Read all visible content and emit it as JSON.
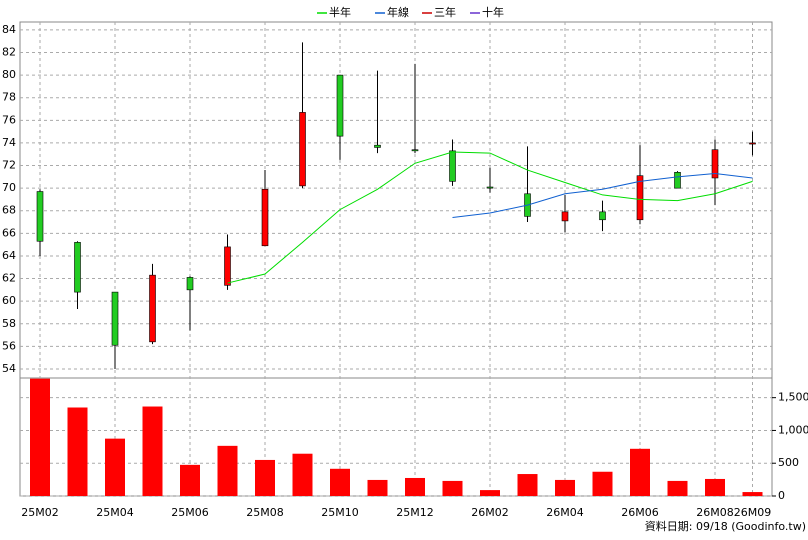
{
  "chart_data": {
    "type": "candlestick",
    "legend": "top",
    "grid": true,
    "up_color": "#ff0000",
    "down_color": "#22cc22",
    "volume_color": "#ff0000",
    "categories": [
      "25M02",
      null,
      "25M04",
      null,
      "25M06",
      null,
      "25M08",
      null,
      "25M10",
      null,
      "25M12",
      null,
      "26M02",
      null,
      "26M04",
      null,
      "26M06",
      null,
      "26M08",
      "26M09"
    ],
    "open": [
      69.7,
      65.2,
      60.8,
      56.4,
      62.1,
      61.4,
      64.9,
      70.2,
      80.0,
      73.8,
      73.4,
      73.3,
      70.1,
      69.5,
      67.1,
      67.9,
      67.2,
      71.4,
      70.9,
      73.9
    ],
    "high": [
      69.9,
      65.3,
      60.8,
      63.3,
      62.2,
      65.9,
      71.6,
      82.9,
      80.0,
      80.4,
      81.0,
      74.3,
      71.8,
      73.7,
      69.4,
      68.9,
      73.8,
      71.5,
      74.3,
      75.0
    ],
    "low": [
      64.0,
      59.3,
      54.0,
      56.2,
      57.4,
      61.0,
      64.9,
      70.0,
      72.5,
      73.1,
      73.1,
      70.2,
      69.6,
      67.0,
      66.1,
      66.2,
      66.8,
      70.0,
      68.5,
      72.9
    ],
    "close": [
      65.3,
      60.8,
      56.1,
      62.3,
      61.0,
      64.8,
      69.9,
      76.7,
      74.6,
      73.6,
      73.3,
      70.6,
      70.0,
      67.5,
      67.9,
      67.2,
      71.1,
      70.0,
      73.4,
      74.0
    ],
    "volume": [
      1790,
      1350,
      875,
      1365,
      475,
      765,
      550,
      645,
      415,
      245,
      275,
      230,
      90,
      335,
      245,
      370,
      720,
      230,
      260,
      60
    ],
    "series": [
      {
        "name": "半年",
        "color": "#00dd00",
        "values": [
          null,
          null,
          null,
          null,
          null,
          61.6,
          62.4,
          65.2,
          68.1,
          69.9,
          72.2,
          73.2,
          73.1,
          71.6,
          70.5,
          69.4,
          69.0,
          68.9,
          69.5,
          70.6
        ]
      },
      {
        "name": "年線",
        "color": "#1060d0",
        "values": [
          null,
          null,
          null,
          null,
          null,
          null,
          null,
          null,
          null,
          null,
          null,
          67.4,
          67.8,
          68.5,
          69.5,
          69.9,
          70.6,
          71.0,
          71.3,
          70.9
        ]
      },
      {
        "name": "三年",
        "color": "#cc0000",
        "values": [
          null,
          null,
          null,
          null,
          null,
          null,
          null,
          null,
          null,
          null,
          null,
          null,
          null,
          null,
          null,
          null,
          null,
          null,
          null,
          null
        ]
      },
      {
        "name": "十年",
        "color": "#6633cc",
        "values": [
          null,
          null,
          null,
          null,
          null,
          null,
          null,
          null,
          null,
          null,
          null,
          null,
          null,
          null,
          null,
          null,
          null,
          null,
          null,
          null
        ]
      }
    ],
    "ylim": [
      53.2,
      84.7
    ],
    "yticks": [
      54,
      56,
      58,
      60,
      62,
      64,
      66,
      68,
      70,
      72,
      74,
      76,
      78,
      80,
      82,
      84
    ],
    "y2lim": [
      0,
      1800
    ],
    "y2ticks": [
      0,
      500,
      {
        "value": 1000,
        "label": "1,000"
      },
      {
        "value": 1500,
        "label": "1,500"
      }
    ],
    "footnote": "資料日期: 09/18 (Goodinfo.tw)"
  }
}
